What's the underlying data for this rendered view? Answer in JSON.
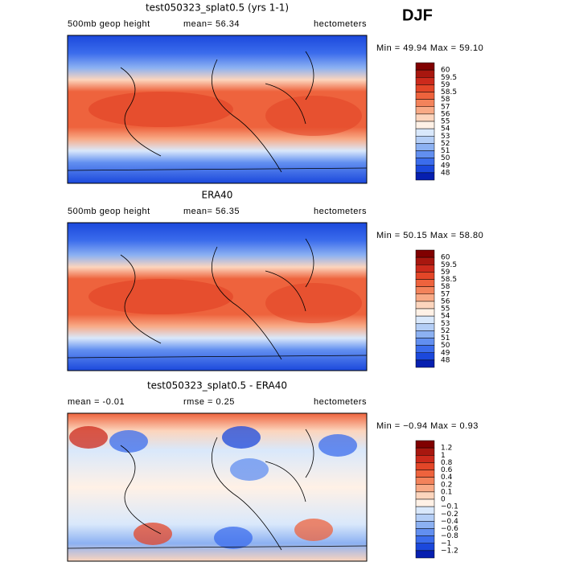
{
  "season": "DJF",
  "colorbar_colors": [
    "#800000",
    "#a8170f",
    "#cc2a1c",
    "#e34628",
    "#ee633d",
    "#f3835b",
    "#f8aa86",
    "#fcd5bd",
    "#fff1e6",
    "#d9e8fb",
    "#b4cef6",
    "#8cb1f2",
    "#628ff0",
    "#3b6cec",
    "#1b48dc",
    "#061fb0"
  ],
  "panels": [
    {
      "title": "test050323_splat0.5 (yrs 1-1)",
      "header_left": "500mb geop height",
      "header_center": "mean=  56.34",
      "header_right": "hectometers",
      "stats": "Min =  49.94 Max =  59.10",
      "levels": [
        "60",
        "59.5",
        "59",
        "58.5",
        "58",
        "57",
        "56",
        "55",
        "54",
        "53",
        "52",
        "51",
        "50",
        "49",
        "48"
      ]
    },
    {
      "title": "ERA40",
      "header_left": "500mb geop height",
      "header_center": "mean=  56.35",
      "header_right": "hectometers",
      "stats": "Min =  50.15 Max =  58.80",
      "levels": [
        "60",
        "59.5",
        "59",
        "58.5",
        "58",
        "57",
        "56",
        "55",
        "54",
        "53",
        "52",
        "51",
        "50",
        "49",
        "48"
      ]
    },
    {
      "title": "test050323_splat0.5 - ERA40",
      "header_left": "mean =  -0.01",
      "header_center": "rmse =  0.25",
      "header_right": "hectometers",
      "stats": "Min = −0.94 Max =  0.93",
      "levels": [
        "1.2",
        "1",
        "0.8",
        "0.6",
        "0.4",
        "0.2",
        "0.1",
        "0",
        "−0.1",
        "−0.2",
        "−0.4",
        "−0.6",
        "−0.8",
        "−1",
        "−1.2"
      ]
    }
  ]
}
